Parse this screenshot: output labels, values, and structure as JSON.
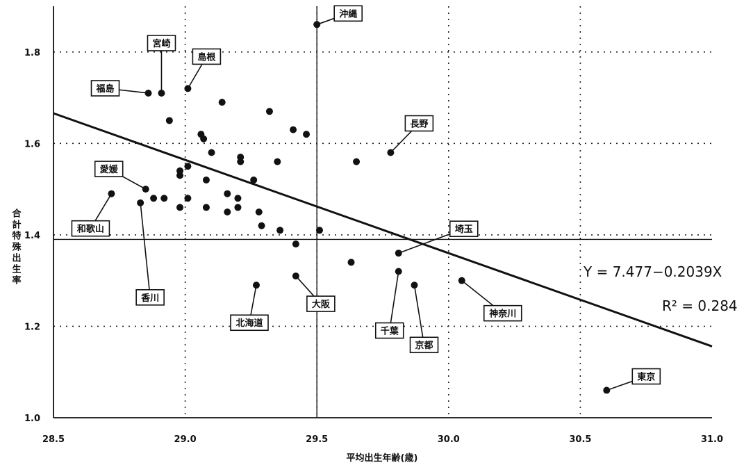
{
  "chart_data": {
    "type": "scatter",
    "title": "",
    "xlabel": "平均出生年齢(歳)",
    "ylabel": "合計特殊出生率",
    "xlim": [
      28.5,
      31.0
    ],
    "ylim": [
      1.0,
      1.9
    ],
    "x_ticks": [
      "28.5",
      "29.0",
      "29.5",
      "30.0",
      "30.5",
      "31.0"
    ],
    "y_ticks": [
      "1.0",
      "1.2",
      "1.4",
      "1.6",
      "1.8"
    ],
    "grid": "dotted",
    "reference_lines": {
      "x": 29.5,
      "y": 1.39
    },
    "trendline": {
      "intercept": 7.477,
      "slope": -0.2039
    },
    "equation_text": "Y = 7.477−0.2039X",
    "r2_text": "R² = 0.284",
    "points": [
      {
        "x": 29.5,
        "y": 1.86,
        "label": "沖縄"
      },
      {
        "x": 28.91,
        "y": 1.71,
        "label": "宮崎"
      },
      {
        "x": 29.01,
        "y": 1.72,
        "label": "島根"
      },
      {
        "x": 28.86,
        "y": 1.71,
        "label": "福島"
      },
      {
        "x": 29.78,
        "y": 1.58,
        "label": "長野"
      },
      {
        "x": 28.85,
        "y": 1.5,
        "label": "愛媛"
      },
      {
        "x": 28.72,
        "y": 1.49,
        "label": "和歌山"
      },
      {
        "x": 28.83,
        "y": 1.47,
        "label": "香川"
      },
      {
        "x": 29.27,
        "y": 1.29,
        "label": "北海道"
      },
      {
        "x": 29.42,
        "y": 1.31,
        "label": "大阪"
      },
      {
        "x": 29.81,
        "y": 1.36,
        "label": "埼玉"
      },
      {
        "x": 29.81,
        "y": 1.32,
        "label": "千葉"
      },
      {
        "x": 29.87,
        "y": 1.29,
        "label": "京都"
      },
      {
        "x": 30.05,
        "y": 1.3,
        "label": "神奈川"
      },
      {
        "x": 30.6,
        "y": 1.06,
        "label": "東京"
      },
      {
        "x": 28.94,
        "y": 1.65
      },
      {
        "x": 29.14,
        "y": 1.69
      },
      {
        "x": 29.32,
        "y": 1.67
      },
      {
        "x": 29.41,
        "y": 1.63
      },
      {
        "x": 29.46,
        "y": 1.62
      },
      {
        "x": 29.06,
        "y": 1.62
      },
      {
        "x": 29.07,
        "y": 1.61
      },
      {
        "x": 29.1,
        "y": 1.58
      },
      {
        "x": 29.21,
        "y": 1.57
      },
      {
        "x": 29.21,
        "y": 1.56
      },
      {
        "x": 29.35,
        "y": 1.56
      },
      {
        "x": 29.65,
        "y": 1.56
      },
      {
        "x": 29.01,
        "y": 1.55
      },
      {
        "x": 28.98,
        "y": 1.54
      },
      {
        "x": 28.98,
        "y": 1.53
      },
      {
        "x": 29.08,
        "y": 1.52
      },
      {
        "x": 29.26,
        "y": 1.52
      },
      {
        "x": 29.16,
        "y": 1.49
      },
      {
        "x": 29.2,
        "y": 1.48
      },
      {
        "x": 28.88,
        "y": 1.48
      },
      {
        "x": 28.92,
        "y": 1.48
      },
      {
        "x": 29.01,
        "y": 1.48
      },
      {
        "x": 29.2,
        "y": 1.46
      },
      {
        "x": 28.98,
        "y": 1.46
      },
      {
        "x": 29.08,
        "y": 1.46
      },
      {
        "x": 29.16,
        "y": 1.45
      },
      {
        "x": 29.28,
        "y": 1.45
      },
      {
        "x": 29.29,
        "y": 1.42
      },
      {
        "x": 29.36,
        "y": 1.41
      },
      {
        "x": 29.51,
        "y": 1.41
      },
      {
        "x": 29.42,
        "y": 1.38
      },
      {
        "x": 29.63,
        "y": 1.34
      }
    ]
  }
}
